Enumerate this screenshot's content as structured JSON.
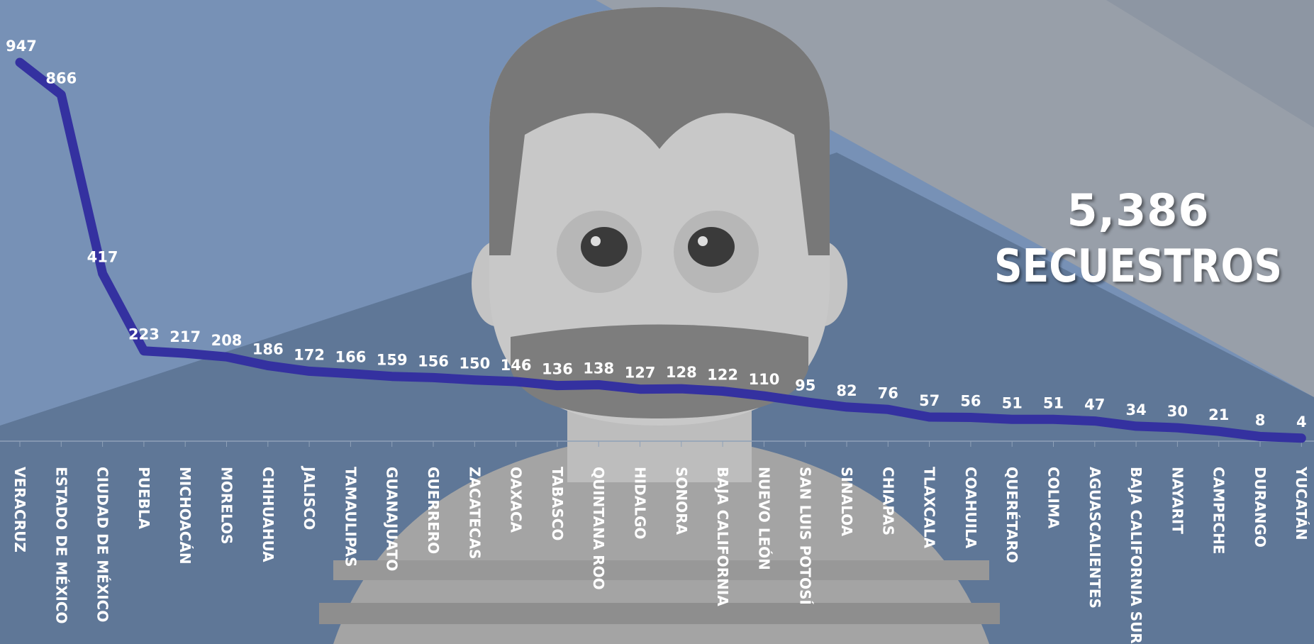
{
  "summary": {
    "total": "5,386",
    "label": "SECUESTROS"
  },
  "colors": {
    "line": "#3431a0",
    "background": "#7791b6"
  },
  "chart_data": {
    "type": "line",
    "categories": [
      "VERACRUZ",
      "ESTADO DE MÉXICO",
      "CIUDAD DE MÉXICO",
      "PUEBLA",
      "MICHOACÁN",
      "MORELOS",
      "CHIHUAHUA",
      "JALISCO",
      "TAMAULIPAS",
      "GUANAJUATO",
      "GUERRERO",
      "ZACATECAS",
      "OAXACA",
      "TABASCO",
      "QUINTANA ROO",
      "HIDALGO",
      "SONORA",
      "BAJA CALIFORNIA",
      "NUEVO LEÓN",
      "SAN LUIS POTOSÍ",
      "SINALOA",
      "CHIAPAS",
      "TLAXCALA",
      "COAHUILA",
      "QUERÉTARO",
      "COLIMA",
      "AGUASCALIENTES",
      "BAJA CALIFORNIA SUR",
      "NAYARIT",
      "CAMPECHE",
      "DURANGO",
      "YUCATÁN"
    ],
    "values": [
      947,
      866,
      417,
      223,
      217,
      208,
      186,
      172,
      166,
      159,
      156,
      150,
      146,
      136,
      138,
      127,
      128,
      122,
      110,
      95,
      82,
      76,
      57,
      56,
      51,
      51,
      47,
      34,
      30,
      21,
      8,
      4
    ],
    "value_labels": [
      "947",
      "866",
      "417",
      "223",
      "217",
      "208",
      "186",
      "172",
      "166",
      "159",
      "156",
      "150",
      "146",
      "136",
      "138",
      "127",
      "128",
      "122",
      "110",
      "95",
      "82",
      "76",
      "57",
      "56",
      "51",
      "51",
      "47",
      "34",
      "30",
      "21",
      "8",
      "4"
    ],
    "ylim": [
      0,
      1000
    ],
    "grid": false,
    "data_labels": true
  }
}
